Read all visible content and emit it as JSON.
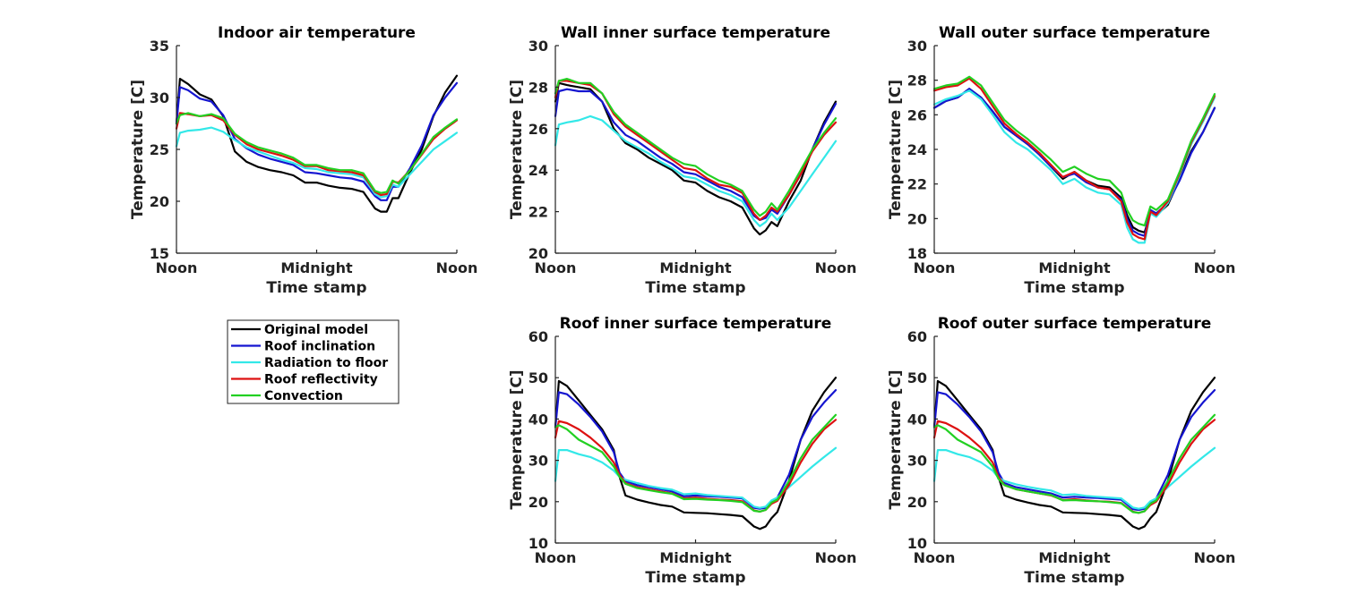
{
  "colors": {
    "Original model": "#000000",
    "Roof inclination": "#1515d0",
    "Radiation to floor": "#33e8e8",
    "Roof reflectivity": "#dd1111",
    "Convection": "#22d022"
  },
  "legend": {
    "placement": "below first panel",
    "entries": [
      "Original model",
      "Roof inclination",
      "Radiation to floor",
      "Roof reflectivity",
      "Convection"
    ]
  },
  "chart_data": [
    {
      "type": "line",
      "title": "Indoor air temperature",
      "xlabel": "Time stamp",
      "ylabel": "Temperature [C]",
      "xlim": [
        0,
        24
      ],
      "ylim": [
        15,
        35
      ],
      "yticks": [
        15,
        20,
        25,
        30,
        35
      ],
      "xticks": [
        0,
        12,
        24
      ],
      "xticklabels": [
        "Noon",
        "Midnight",
        "Noon"
      ],
      "x": [
        0,
        0.3,
        1,
        2,
        3,
        4,
        5,
        6,
        7,
        8,
        9,
        10,
        11,
        12,
        13,
        14,
        15,
        16,
        17,
        17.5,
        18,
        18.5,
        19,
        20,
        21,
        22,
        23,
        24
      ],
      "series": [
        {
          "name": "Original model",
          "values": [
            27.5,
            31.8,
            31.3,
            30.3,
            29.8,
            28.2,
            24.8,
            23.8,
            23.3,
            23.0,
            22.8,
            22.5,
            21.8,
            21.8,
            21.5,
            21.3,
            21.2,
            20.9,
            19.3,
            19.0,
            19.0,
            20.3,
            20.3,
            22.8,
            25.0,
            28.2,
            30.5,
            32.1
          ]
        },
        {
          "name": "Roof inclination",
          "values": [
            27.5,
            31.0,
            30.7,
            29.9,
            29.6,
            28.3,
            26.0,
            25.1,
            24.5,
            24.1,
            23.8,
            23.5,
            22.8,
            22.7,
            22.5,
            22.3,
            22.2,
            21.9,
            20.5,
            20.1,
            20.1,
            21.4,
            21.4,
            23.2,
            25.4,
            28.3,
            30.0,
            31.4
          ]
        },
        {
          "name": "Radiation to floor",
          "values": [
            25.3,
            26.6,
            26.8,
            26.9,
            27.1,
            26.7,
            25.9,
            25.2,
            24.8,
            24.4,
            24.0,
            23.7,
            23.2,
            23.1,
            22.8,
            22.7,
            22.6,
            22.3,
            20.7,
            20.4,
            20.5,
            21.6,
            21.4,
            22.6,
            23.8,
            25.0,
            25.8,
            26.6
          ]
        },
        {
          "name": "Roof reflectivity",
          "values": [
            27.0,
            28.5,
            28.4,
            28.2,
            28.3,
            27.8,
            26.4,
            25.5,
            25.0,
            24.7,
            24.4,
            24.0,
            23.4,
            23.4,
            23.0,
            22.9,
            22.8,
            22.5,
            20.9,
            20.6,
            20.7,
            21.9,
            21.8,
            23.0,
            24.5,
            26.0,
            27.0,
            27.8
          ]
        },
        {
          "name": "Convection",
          "values": [
            27.5,
            28.3,
            28.5,
            28.2,
            28.4,
            28.0,
            26.5,
            25.7,
            25.2,
            24.9,
            24.6,
            24.2,
            23.5,
            23.5,
            23.2,
            23.0,
            23.0,
            22.7,
            21.0,
            20.8,
            20.9,
            22.0,
            21.7,
            23.0,
            24.6,
            26.2,
            27.1,
            27.9
          ]
        }
      ]
    },
    {
      "type": "line",
      "title": "Wall inner surface temperature",
      "xlabel": "Time stamp",
      "ylabel": "Temperature [C]",
      "xlim": [
        0,
        24
      ],
      "ylim": [
        20,
        30
      ],
      "yticks": [
        20,
        22,
        24,
        26,
        28,
        30
      ],
      "xticks": [
        0,
        12,
        24
      ],
      "xticklabels": [
        "Noon",
        "Midnight",
        "Noon"
      ],
      "x": [
        0,
        0.3,
        1,
        2,
        3,
        4,
        5,
        6,
        7,
        8,
        9,
        10,
        11,
        12,
        13,
        14,
        15,
        16,
        17,
        17.5,
        18,
        18.5,
        19,
        20,
        21,
        22,
        23,
        24
      ],
      "series": [
        {
          "name": "Original model",
          "values": [
            27.3,
            28.2,
            28.1,
            28.0,
            27.9,
            27.3,
            26.0,
            25.3,
            25.0,
            24.6,
            24.3,
            24.0,
            23.5,
            23.4,
            23.0,
            22.7,
            22.5,
            22.2,
            21.2,
            20.9,
            21.1,
            21.5,
            21.3,
            22.5,
            23.5,
            25.0,
            26.3,
            27.3
          ]
        },
        {
          "name": "Roof inclination",
          "values": [
            26.6,
            27.8,
            27.9,
            27.8,
            27.8,
            27.3,
            26.3,
            25.7,
            25.4,
            25.0,
            24.6,
            24.3,
            23.9,
            23.8,
            23.5,
            23.2,
            23.0,
            22.7,
            21.8,
            21.6,
            21.7,
            22.1,
            21.9,
            22.8,
            23.8,
            25.0,
            26.2,
            27.2
          ]
        },
        {
          "name": "Radiation to floor",
          "values": [
            25.2,
            26.2,
            26.3,
            26.4,
            26.6,
            26.4,
            25.9,
            25.4,
            25.1,
            24.8,
            24.4,
            24.1,
            23.7,
            23.6,
            23.3,
            23.0,
            22.8,
            22.5,
            21.6,
            21.3,
            21.5,
            21.9,
            21.6,
            22.2,
            23.0,
            23.8,
            24.6,
            25.4
          ]
        },
        {
          "name": "Roof reflectivity",
          "values": [
            27.5,
            28.3,
            28.3,
            28.2,
            28.1,
            27.7,
            26.7,
            26.1,
            25.7,
            25.3,
            24.9,
            24.5,
            24.1,
            24.0,
            23.6,
            23.3,
            23.2,
            22.9,
            21.9,
            21.6,
            21.8,
            22.2,
            22.0,
            22.8,
            23.8,
            24.9,
            25.7,
            26.3
          ]
        },
        {
          "name": "Convection",
          "values": [
            27.7,
            28.3,
            28.4,
            28.2,
            28.2,
            27.7,
            26.8,
            26.2,
            25.8,
            25.4,
            25.0,
            24.6,
            24.3,
            24.2,
            23.8,
            23.5,
            23.3,
            23.0,
            22.1,
            21.8,
            22.0,
            22.4,
            22.1,
            23.0,
            24.0,
            25.0,
            25.8,
            26.5
          ]
        }
      ]
    },
    {
      "type": "line",
      "title": "Wall outer surface temperature",
      "xlabel": "Time stamp",
      "ylabel": "Temperature [C]",
      "xlim": [
        0,
        24
      ],
      "ylim": [
        18,
        30
      ],
      "yticks": [
        18,
        20,
        22,
        24,
        26,
        28,
        30
      ],
      "xticks": [
        0,
        12,
        24
      ],
      "xticklabels": [
        "Noon",
        "Midnight",
        "Noon"
      ],
      "x": [
        0,
        1,
        2,
        3,
        4,
        5,
        6,
        7,
        8,
        9,
        10,
        11,
        12,
        13,
        14,
        15,
        16,
        16.5,
        17,
        17.5,
        18,
        18.5,
        19,
        20,
        21,
        22,
        23,
        24
      ],
      "series": [
        {
          "name": "Original model",
          "values": [
            26.4,
            26.8,
            27.0,
            27.5,
            27.0,
            26.2,
            25.3,
            24.8,
            24.3,
            23.7,
            23.0,
            22.3,
            22.7,
            22.2,
            21.9,
            21.8,
            21.2,
            20.2,
            19.5,
            19.3,
            19.2,
            20.3,
            20.2,
            20.8,
            22.3,
            23.9,
            25.0,
            26.4
          ]
        },
        {
          "name": "Roof inclination",
          "values": [
            26.4,
            26.8,
            27.0,
            27.5,
            27.0,
            26.2,
            25.3,
            24.8,
            24.3,
            23.7,
            23.0,
            22.4,
            22.6,
            22.1,
            21.8,
            21.7,
            21.1,
            20.0,
            19.3,
            19.1,
            19.0,
            20.5,
            20.3,
            20.9,
            22.2,
            23.8,
            25.0,
            26.4
          ]
        },
        {
          "name": "Radiation to floor",
          "values": [
            26.6,
            26.9,
            27.1,
            27.4,
            26.9,
            26.0,
            25.0,
            24.4,
            24.0,
            23.4,
            22.8,
            22.0,
            22.3,
            21.8,
            21.5,
            21.4,
            20.8,
            19.5,
            18.8,
            18.6,
            18.6,
            20.3,
            20.1,
            20.9,
            22.5,
            24.3,
            25.6,
            27.0
          ]
        },
        {
          "name": "Roof reflectivity",
          "values": [
            27.4,
            27.6,
            27.7,
            28.1,
            27.5,
            26.5,
            25.5,
            24.9,
            24.4,
            23.8,
            23.1,
            22.4,
            22.7,
            22.2,
            21.8,
            21.7,
            21.0,
            19.8,
            19.1,
            18.9,
            18.8,
            20.4,
            20.2,
            21.0,
            22.6,
            24.4,
            25.7,
            27.1
          ]
        },
        {
          "name": "Convection",
          "values": [
            27.5,
            27.7,
            27.8,
            28.2,
            27.7,
            26.7,
            25.7,
            25.1,
            24.6,
            24.0,
            23.4,
            22.7,
            23.0,
            22.6,
            22.3,
            22.2,
            21.5,
            20.5,
            19.9,
            19.7,
            19.6,
            20.7,
            20.5,
            21.1,
            22.7,
            24.5,
            25.8,
            27.2
          ]
        }
      ]
    },
    {
      "type": "line",
      "title": "Roof inner surface temperature",
      "xlabel": "Time stamp",
      "ylabel": "Temperature [C]",
      "xlim": [
        0,
        24
      ],
      "ylim": [
        10,
        60
      ],
      "yticks": [
        10,
        20,
        30,
        40,
        50,
        60
      ],
      "xticks": [
        0,
        12,
        24
      ],
      "xticklabels": [
        "Noon",
        "Midnight",
        "Noon"
      ],
      "x": [
        0,
        0.3,
        1,
        2,
        3,
        4,
        5,
        5.5,
        6,
        7,
        8,
        9,
        10,
        11,
        12,
        13,
        14,
        15,
        16,
        17,
        17.5,
        18,
        18.5,
        19,
        20,
        21,
        22,
        23,
        24
      ],
      "series": [
        {
          "name": "Original model",
          "values": [
            38.0,
            49.2,
            48.0,
            44.5,
            41.0,
            37.5,
            32.5,
            26.0,
            21.5,
            20.5,
            19.8,
            19.2,
            18.8,
            17.4,
            17.3,
            17.2,
            17.0,
            16.8,
            16.5,
            14.0,
            13.4,
            14.0,
            16.0,
            17.5,
            25.0,
            35.0,
            42.0,
            46.5,
            50.0
          ]
        },
        {
          "name": "Roof inclination",
          "values": [
            38.0,
            46.5,
            46.0,
            43.5,
            40.5,
            37.0,
            32.0,
            27.0,
            25.0,
            24.0,
            23.5,
            23.0,
            22.5,
            21.3,
            21.5,
            21.3,
            21.2,
            21.0,
            20.8,
            18.5,
            18.3,
            18.5,
            20.0,
            21.0,
            26.5,
            35.0,
            40.5,
            44.0,
            47.0
          ]
        },
        {
          "name": "Radiation to floor",
          "values": [
            25.0,
            32.5,
            32.5,
            31.5,
            30.8,
            29.5,
            27.5,
            26.0,
            25.3,
            24.5,
            23.8,
            23.3,
            22.9,
            21.8,
            22.0,
            21.6,
            21.4,
            21.2,
            21.0,
            18.8,
            18.5,
            18.8,
            20.3,
            21.0,
            23.5,
            26.0,
            28.5,
            30.8,
            33.0
          ]
        },
        {
          "name": "Roof reflectivity",
          "values": [
            35.5,
            39.5,
            39.0,
            37.5,
            35.5,
            33.0,
            29.5,
            26.5,
            24.5,
            23.5,
            23.0,
            22.5,
            22.0,
            20.8,
            21.0,
            20.7,
            20.5,
            20.4,
            20.1,
            17.9,
            17.6,
            18.0,
            19.5,
            20.2,
            24.0,
            29.5,
            34.0,
            37.5,
            39.8
          ]
        },
        {
          "name": "Convection",
          "values": [
            38.0,
            38.5,
            37.5,
            35.0,
            33.5,
            32.0,
            28.5,
            26.0,
            24.3,
            23.3,
            22.8,
            22.3,
            21.9,
            20.6,
            20.7,
            20.5,
            20.4,
            20.2,
            19.9,
            17.8,
            17.6,
            18.0,
            19.8,
            20.5,
            25.0,
            30.5,
            35.0,
            38.0,
            41.0
          ]
        }
      ]
    },
    {
      "type": "line",
      "title": "Roof outer surface temperature",
      "xlabel": "Time stamp",
      "ylabel": "Temperature [C]",
      "xlim": [
        0,
        24
      ],
      "ylim": [
        10,
        60
      ],
      "yticks": [
        10,
        20,
        30,
        40,
        50,
        60
      ],
      "xticks": [
        0,
        12,
        24
      ],
      "xticklabels": [
        "Noon",
        "Midnight",
        "Noon"
      ],
      "x": [
        0,
        0.3,
        1,
        2,
        3,
        4,
        5,
        5.5,
        6,
        7,
        8,
        9,
        10,
        11,
        12,
        13,
        14,
        15,
        16,
        17,
        17.5,
        18,
        18.5,
        19,
        20,
        21,
        22,
        23,
        24
      ],
      "series": [
        {
          "name": "Original model",
          "values": [
            38.0,
            49.2,
            48.0,
            44.5,
            41.0,
            37.5,
            32.5,
            26.0,
            21.5,
            20.5,
            19.8,
            19.2,
            18.8,
            17.4,
            17.3,
            17.2,
            17.0,
            16.8,
            16.5,
            14.0,
            13.4,
            14.0,
            16.0,
            17.5,
            25.0,
            35.0,
            42.0,
            46.5,
            50.0
          ]
        },
        {
          "name": "Roof inclination",
          "values": [
            38.0,
            46.5,
            46.0,
            43.5,
            40.5,
            37.0,
            32.0,
            27.0,
            24.5,
            23.5,
            23.0,
            22.5,
            22.0,
            21.0,
            21.2,
            21.0,
            20.9,
            20.7,
            20.5,
            18.2,
            18.0,
            18.3,
            19.8,
            20.8,
            26.5,
            35.0,
            40.5,
            44.0,
            47.0
          ]
        },
        {
          "name": "Radiation to floor",
          "values": [
            25.0,
            32.5,
            32.5,
            31.5,
            30.8,
            29.5,
            27.5,
            25.8,
            25.0,
            24.2,
            23.6,
            23.1,
            22.7,
            21.6,
            21.8,
            21.4,
            21.2,
            21.0,
            20.8,
            18.6,
            18.3,
            18.6,
            20.1,
            20.8,
            23.5,
            26.0,
            28.5,
            30.8,
            33.0
          ]
        },
        {
          "name": "Roof reflectivity",
          "values": [
            35.5,
            39.5,
            39.0,
            37.5,
            35.5,
            33.0,
            29.5,
            26.0,
            24.0,
            23.0,
            22.5,
            22.0,
            21.5,
            20.4,
            20.6,
            20.3,
            20.1,
            20.0,
            19.7,
            17.6,
            17.3,
            17.7,
            19.2,
            20.0,
            24.0,
            29.5,
            34.0,
            37.5,
            39.8
          ]
        },
        {
          "name": "Convection",
          "values": [
            38.0,
            38.5,
            37.5,
            35.0,
            33.5,
            32.0,
            28.5,
            25.5,
            24.0,
            23.0,
            22.5,
            22.0,
            21.6,
            20.3,
            20.4,
            20.2,
            20.1,
            19.9,
            19.6,
            17.5,
            17.3,
            17.7,
            19.5,
            20.3,
            25.0,
            30.5,
            35.0,
            38.0,
            41.0
          ]
        }
      ]
    }
  ]
}
